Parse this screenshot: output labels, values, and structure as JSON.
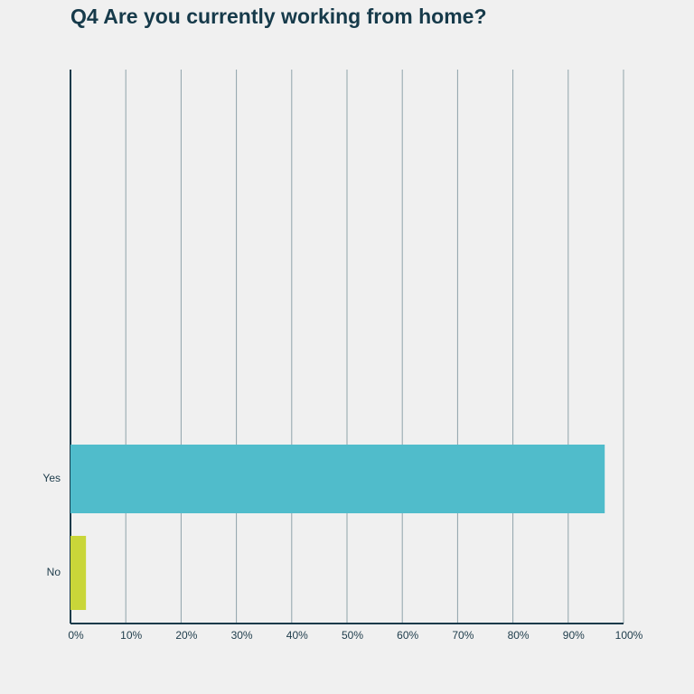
{
  "chart_data": {
    "type": "hbar",
    "title": "Q4 Are you currently working from home?",
    "categories": [
      "Yes",
      "No"
    ],
    "values": [
      96.6,
      2.8
    ],
    "colors": [
      "#50bccb",
      "#c9d639"
    ],
    "xlim": [
      0,
      100
    ],
    "xticks": [
      {
        "value": 0,
        "label": "0%"
      },
      {
        "value": 10,
        "label": "10%"
      },
      {
        "value": 20,
        "label": "20%"
      },
      {
        "value": 30,
        "label": "30%"
      },
      {
        "value": 40,
        "label": "40%"
      },
      {
        "value": 50,
        "label": "50%"
      },
      {
        "value": 60,
        "label": "60%"
      },
      {
        "value": 70,
        "label": "70%"
      },
      {
        "value": 80,
        "label": "80%"
      },
      {
        "value": 90,
        "label": "90%"
      },
      {
        "value": 100,
        "label": "100%"
      }
    ],
    "grid": true
  }
}
